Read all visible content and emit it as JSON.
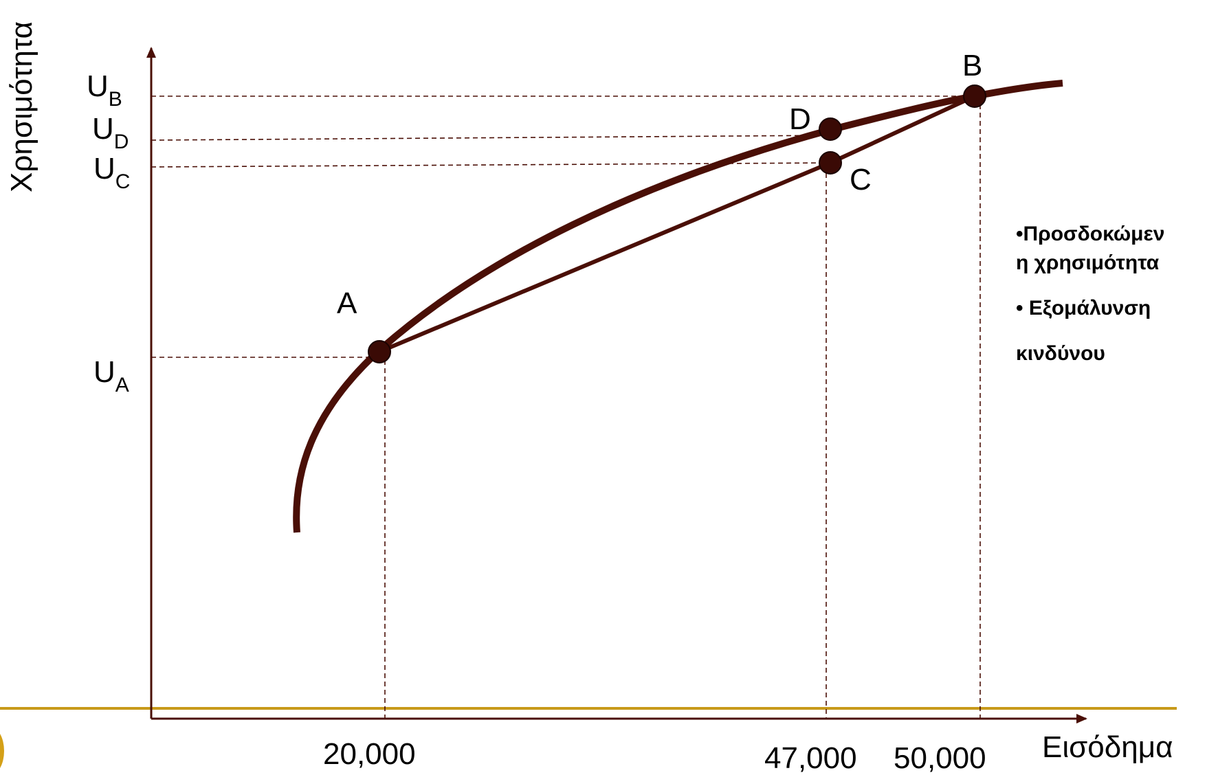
{
  "axes": {
    "y_title": "Χρησιμότητα",
    "x_title": "Εισόδημα"
  },
  "x_ticks": [
    "20,000",
    "47,000",
    "50,000"
  ],
  "y_ticks": [
    {
      "main": "U",
      "sub": "B"
    },
    {
      "main": "U",
      "sub": "D"
    },
    {
      "main": "U",
      "sub": "C"
    },
    {
      "main": "U",
      "sub": "A"
    }
  ],
  "points": {
    "A": "A",
    "B": "B",
    "C": "C",
    "D": "D"
  },
  "notes": {
    "line1": "•Προσδοκώμεν\nη χρησιμότητα",
    "line2": "• Εξομάλυνση",
    "line3": "κινδύνου"
  },
  "colors": {
    "curve": "#4a0f06",
    "axis": "#4a0f06",
    "slide_rule": "#c89a1a",
    "point_fill": "#3a0a05"
  },
  "chart_data": {
    "type": "line",
    "series": [
      {
        "points": [
          "A",
          "D",
          "B"
        ]
      },
      {
        "points": [
          "A",
          "C",
          "B"
        ]
      }
    ],
    "x_values": {
      "A": 20000,
      "C": 47000,
      "D": 47000,
      "B": 50000
    },
    "grid": false
  }
}
